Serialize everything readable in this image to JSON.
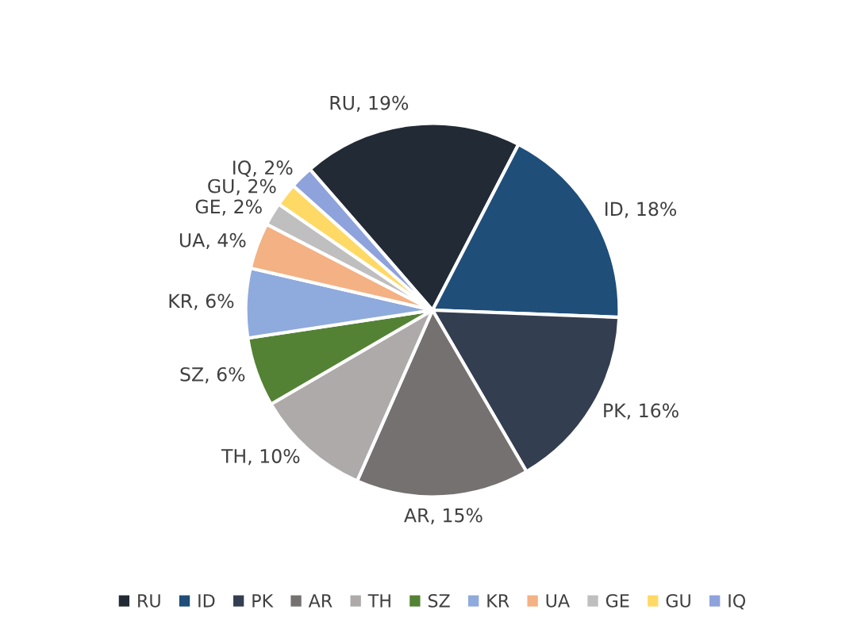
{
  "chart_data": {
    "type": "pie",
    "categories": [
      "RU",
      "ID",
      "PK",
      "AR",
      "TH",
      "SZ",
      "KR",
      "UA",
      "GE",
      "GU",
      "IQ"
    ],
    "values": [
      19,
      18,
      16,
      15,
      10,
      6,
      6,
      4,
      2,
      2,
      2
    ],
    "colors": [
      "#222a35",
      "#1f4e79",
      "#333f50",
      "#767171",
      "#aeaaaa",
      "#548235",
      "#8faadc",
      "#f4b183",
      "#bfbfbf",
      "#ffd966",
      "#8ea2dc"
    ],
    "value_labels": [
      "RU, 19%",
      "ID, 18%",
      "PK, 16%",
      "AR, 15%",
      "TH, 10%",
      "SZ, 6%",
      "KR, 6%",
      "UA, 4%",
      "GE, 2%",
      "GU, 2%",
      "IQ, 2%"
    ],
    "legend": "bottom"
  }
}
